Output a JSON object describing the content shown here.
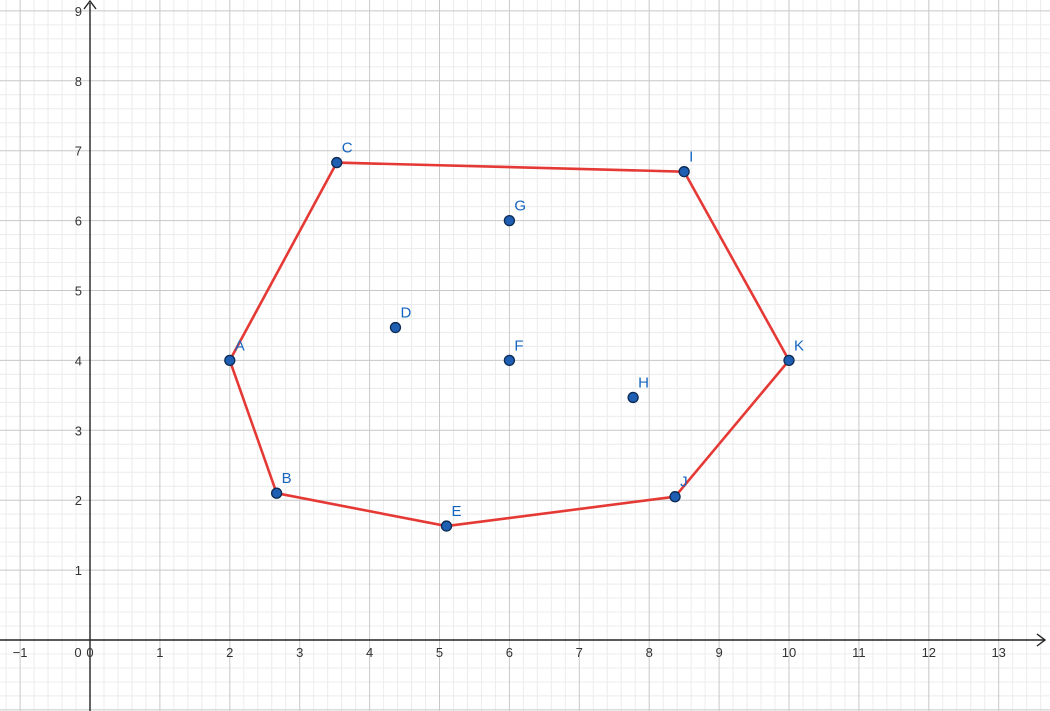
{
  "chart_data": {
    "type": "scatter",
    "title": "",
    "xlabel": "",
    "ylabel": "",
    "xlim": [
      -1.3,
      13.7
    ],
    "ylim": [
      -1.0,
      9.15
    ],
    "grid": true,
    "minor_grid": true,
    "x_ticks": [
      -1,
      0,
      1,
      2,
      3,
      4,
      5,
      6,
      7,
      8,
      9,
      10,
      11,
      12,
      13
    ],
    "y_ticks": [
      1,
      2,
      3,
      4,
      5,
      6,
      7,
      8,
      9
    ],
    "origin_label": "0",
    "points": [
      {
        "name": "A",
        "x": 2.0,
        "y": 4.0
      },
      {
        "name": "B",
        "x": 2.67,
        "y": 2.1
      },
      {
        "name": "C",
        "x": 3.53,
        "y": 6.83
      },
      {
        "name": "D",
        "x": 4.37,
        "y": 4.47
      },
      {
        "name": "E",
        "x": 5.1,
        "y": 1.63
      },
      {
        "name": "F",
        "x": 6.0,
        "y": 4.0
      },
      {
        "name": "G",
        "x": 6.0,
        "y": 6.0
      },
      {
        "name": "H",
        "x": 7.77,
        "y": 3.47
      },
      {
        "name": "I",
        "x": 8.5,
        "y": 6.7
      },
      {
        "name": "J",
        "x": 8.37,
        "y": 2.05
      },
      {
        "name": "K",
        "x": 10.0,
        "y": 4.0
      }
    ],
    "polygon": [
      "A",
      "C",
      "I",
      "K",
      "J",
      "E",
      "B"
    ],
    "colors": {
      "polygon": "#e53935",
      "point_fill": "#1e5fb4",
      "point_stroke": "#0d2a52",
      "label": "#1565c0",
      "major_grid": "#c8c8c8",
      "minor_grid": "#ececec",
      "axis": "#222222"
    }
  }
}
